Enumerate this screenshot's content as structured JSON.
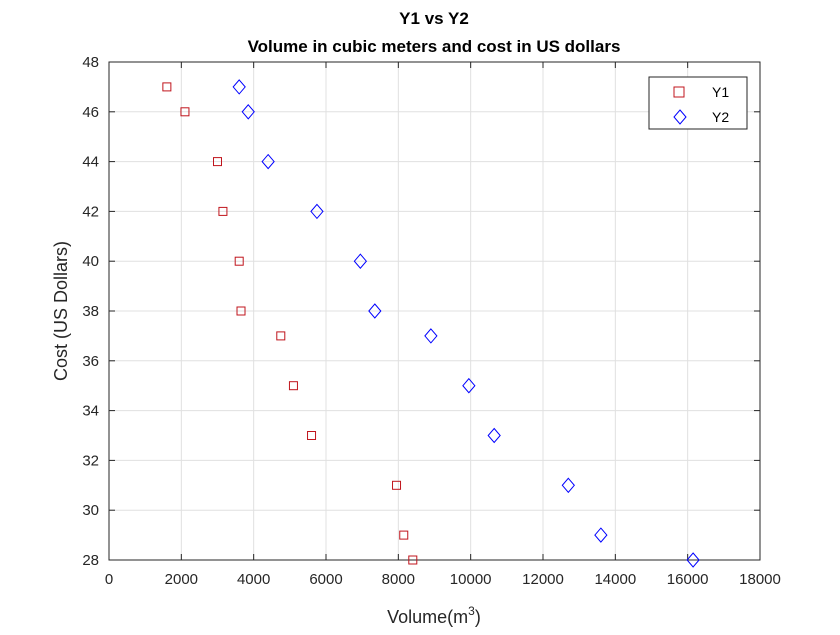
{
  "chart_data": {
    "type": "scatter",
    "title": "Y1 vs Y2",
    "subtitle": "Volume in cubic meters and cost in US dollars",
    "xlabel": "Volume(m",
    "xlabel_superscript": "3",
    "xlabel_suffix": ")",
    "ylabel": "Cost (US Dollars)",
    "xlim": [
      0,
      18000
    ],
    "ylim": [
      28,
      48
    ],
    "x_ticks": [
      0,
      2000,
      4000,
      6000,
      8000,
      10000,
      12000,
      14000,
      16000,
      18000
    ],
    "y_ticks": [
      28,
      30,
      32,
      34,
      36,
      38,
      40,
      42,
      44,
      46,
      48
    ],
    "grid": true,
    "legend_position": "top-right",
    "series": [
      {
        "name": "Y1",
        "marker": "square",
        "color": "#c0141c",
        "points": [
          {
            "x": 1600,
            "y": 47
          },
          {
            "x": 2100,
            "y": 46
          },
          {
            "x": 3000,
            "y": 44
          },
          {
            "x": 3150,
            "y": 42
          },
          {
            "x": 3600,
            "y": 40
          },
          {
            "x": 3650,
            "y": 38
          },
          {
            "x": 4750,
            "y": 37
          },
          {
            "x": 5100,
            "y": 35
          },
          {
            "x": 5600,
            "y": 33
          },
          {
            "x": 7950,
            "y": 31
          },
          {
            "x": 8150,
            "y": 29
          },
          {
            "x": 8400,
            "y": 28
          }
        ]
      },
      {
        "name": "Y2",
        "marker": "diamond",
        "color": "#0000ff",
        "points": [
          {
            "x": 3600,
            "y": 47
          },
          {
            "x": 3850,
            "y": 46
          },
          {
            "x": 4400,
            "y": 44
          },
          {
            "x": 5750,
            "y": 42
          },
          {
            "x": 6950,
            "y": 40
          },
          {
            "x": 7350,
            "y": 38
          },
          {
            "x": 8900,
            "y": 37
          },
          {
            "x": 9950,
            "y": 35
          },
          {
            "x": 10650,
            "y": 33
          },
          {
            "x": 12700,
            "y": 31
          },
          {
            "x": 13600,
            "y": 29
          },
          {
            "x": 16150,
            "y": 28
          }
        ]
      }
    ]
  }
}
